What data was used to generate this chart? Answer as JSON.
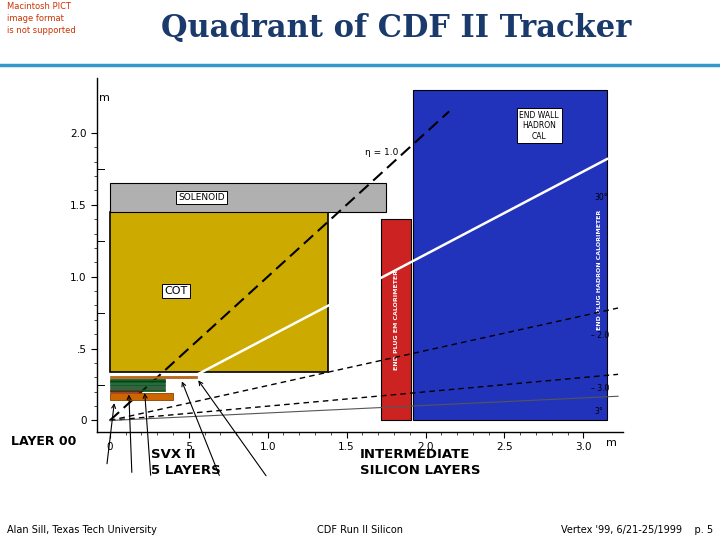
{
  "title": "Quadrant of CDF II Tracker",
  "title_fontsize": 22,
  "title_color": "#1a3a6b",
  "subtitle_left": "Macintosh PICT\nimage format\nis not supported",
  "subtitle_left_color": "#cc3300",
  "bg_color": "#ffffff",
  "header_line_color": "#3399cc",
  "footer_text_left": "Alan Sill, Texas Tech University",
  "footer_text_center": "CDF Run II Silicon",
  "footer_text_right": "Vertex '99, 6/21-25/1999    p. 5",
  "yticks": [
    0.0,
    0.5,
    1.0,
    1.5,
    2.0
  ],
  "ytick_labels": [
    "0",
    ".5",
    "1.0",
    "1.5",
    "2.0"
  ],
  "xticks": [
    0.0,
    0.5,
    1.0,
    1.5,
    2.0,
    2.5,
    3.0
  ],
  "xtick_labels": [
    "0",
    ".5",
    "1.0",
    "1.5",
    "2.0",
    "2.5",
    "3.0"
  ],
  "solenoid_color": "#b0b0b0",
  "cot_color": "#ccaa00",
  "end_plug_em_color": "#cc2222",
  "end_wall_hadron_color": "#2233bb",
  "layer00_color": "#cc6600",
  "svx_color": "#006622",
  "svx2_color": "#004400",
  "isl_color": "#cc6600"
}
